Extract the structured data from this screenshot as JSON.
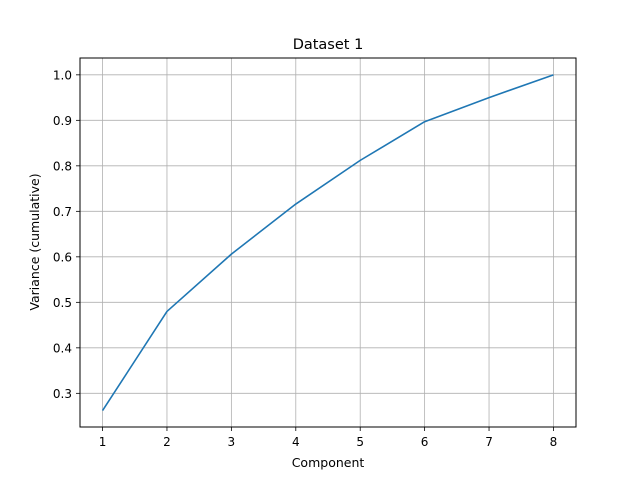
{
  "chart_data": {
    "type": "line",
    "title": "Dataset 1",
    "xlabel": "Component",
    "ylabel": "Variance (cumulative)",
    "x": [
      1,
      2,
      3,
      4,
      5,
      6,
      7,
      8
    ],
    "series": [
      {
        "values": [
          0.262,
          0.48,
          0.606,
          0.716,
          0.812,
          0.897,
          0.95,
          1.0
        ],
        "color": "#1f77b4"
      }
    ],
    "xlim": [
      0.65,
      8.35
    ],
    "ylim": [
      0.226,
      1.037
    ],
    "xticks": [
      1,
      2,
      3,
      4,
      5,
      6,
      7,
      8
    ],
    "xtick_labels": [
      "1",
      "2",
      "3",
      "4",
      "5",
      "6",
      "7",
      "8"
    ],
    "yticks": [
      0.3,
      0.4,
      0.5,
      0.6,
      0.7,
      0.8,
      0.9,
      1.0
    ],
    "ytick_labels": [
      "0.3",
      "0.4",
      "0.5",
      "0.6",
      "0.7",
      "0.8",
      "0.9",
      "1.0"
    ],
    "grid": true,
    "grid_color": "#b0b0b0",
    "legend": "none"
  }
}
